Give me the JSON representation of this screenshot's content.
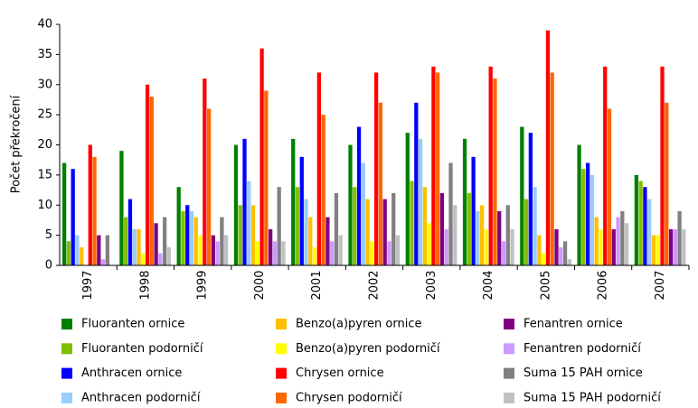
{
  "chart_data": {
    "type": "bar",
    "y_label": "Počet překročení",
    "categories": [
      "1997",
      "1998",
      "1999",
      "2000",
      "2001",
      "2002",
      "2003",
      "2004",
      "2005",
      "2006",
      "2007"
    ],
    "ylim": [
      0,
      40
    ],
    "yticks": [
      0,
      5,
      10,
      15,
      20,
      25,
      30,
      35,
      40
    ],
    "series": [
      {
        "name": "Fluoranten ornice",
        "color": "#008000",
        "values": [
          17,
          19,
          13,
          20,
          21,
          20,
          22,
          21,
          23,
          20,
          15
        ]
      },
      {
        "name": "Fluoranten podorničí",
        "color": "#80c000",
        "values": [
          4,
          8,
          9,
          10,
          13,
          13,
          14,
          12,
          11,
          16,
          14
        ]
      },
      {
        "name": "Anthracen ornice",
        "color": "#0000ff",
        "values": [
          16,
          11,
          10,
          21,
          18,
          23,
          27,
          18,
          22,
          17,
          13
        ]
      },
      {
        "name": "Anthracen podorničí",
        "color": "#99ccff",
        "values": [
          5,
          6,
          9,
          14,
          11,
          17,
          21,
          9,
          13,
          15,
          11
        ]
      },
      {
        "name": "Benzo(a)pyren ornice",
        "color": "#ffc000",
        "values": [
          3,
          6,
          8,
          10,
          8,
          11,
          13,
          10,
          5,
          8,
          5
        ]
      },
      {
        "name": "Benzo(a)pyren podorničí",
        "color": "#ffff00",
        "values": [
          0,
          2,
          5,
          4,
          3,
          4,
          7,
          6,
          2,
          6,
          5
        ]
      },
      {
        "name": "Chrysen ornice",
        "color": "#ff0000",
        "values": [
          20,
          30,
          31,
          36,
          32,
          32,
          33,
          33,
          39,
          33,
          33
        ]
      },
      {
        "name": "Chrysen podorničí",
        "color": "#ff6600",
        "values": [
          18,
          28,
          26,
          29,
          25,
          27,
          32,
          31,
          32,
          26,
          27
        ]
      },
      {
        "name": "Fenantren ornice",
        "color": "#800080",
        "values": [
          5,
          7,
          5,
          6,
          8,
          11,
          12,
          9,
          6,
          6,
          6
        ]
      },
      {
        "name": "Fenantren podorničí",
        "color": "#cc99ff",
        "values": [
          1,
          2,
          4,
          4,
          4,
          4,
          6,
          4,
          3,
          8,
          6
        ]
      },
      {
        "name": "Suma 15 PAH ornice",
        "color": "#808080",
        "values": [
          5,
          8,
          8,
          13,
          12,
          12,
          17,
          10,
          4,
          9,
          9
        ]
      },
      {
        "name": "Suma 15 PAH podorničí",
        "color": "#c0c0c0",
        "values": [
          0,
          3,
          5,
          4,
          5,
          5,
          10,
          6,
          1,
          7,
          6
        ]
      }
    ]
  }
}
